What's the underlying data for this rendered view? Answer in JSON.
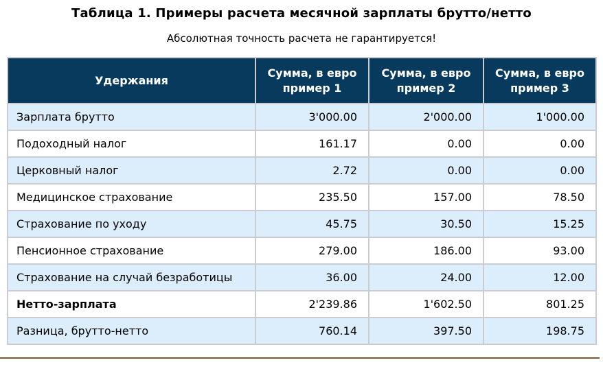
{
  "page": {
    "title": "Таблица 1. Примеры расчета месячной зарплаты брутто/нетто",
    "subtitle": "Абсолютная точность расчета не гарантируется!"
  },
  "table": {
    "header": {
      "col0": "Удержания",
      "col1": "Сумма, в евро\nпример 1",
      "col2": "Сумма, в евро\nпример 2",
      "col3": "Сумма, в евро\nпример 3"
    },
    "rows": [
      {
        "label": "Зарплата брутто",
        "values": [
          "3'000.00",
          "2'000.00",
          "1'000.00"
        ],
        "bold": false
      },
      {
        "label": "Подоходный налог",
        "values": [
          "161.17",
          "0.00",
          "0.00"
        ],
        "bold": false
      },
      {
        "label": "Церковный налог",
        "values": [
          "2.72",
          "0.00",
          "0.00"
        ],
        "bold": false
      },
      {
        "label": "Медицинское страхование",
        "values": [
          "235.50",
          "157.00",
          "78.50"
        ],
        "bold": false
      },
      {
        "label": "Страхование по уходу",
        "values": [
          "45.75",
          "30.50",
          "15.25"
        ],
        "bold": false
      },
      {
        "label": "Пенсионное страхование",
        "values": [
          "279.00",
          "186.00",
          "93.00"
        ],
        "bold": false
      },
      {
        "label": "Страхование на случай безработицы",
        "values": [
          "36.00",
          "24.00",
          "12.00"
        ],
        "bold": false
      },
      {
        "label": "Нетто-зарплата",
        "values": [
          "2'239.86",
          "1'602.50",
          "801.25"
        ],
        "bold": true
      },
      {
        "label": "Разница, брутто-нетто",
        "values": [
          "760.14",
          "397.50",
          "198.75"
        ],
        "bold": false
      }
    ]
  },
  "colors": {
    "header_bg": "#083a5e",
    "header_text": "#ffffff",
    "row_alt_bg": "#dcedfb",
    "row_bg": "#ffffff",
    "grid_line": "#c9cdd2",
    "bottom_rule": "#7e5c30"
  }
}
